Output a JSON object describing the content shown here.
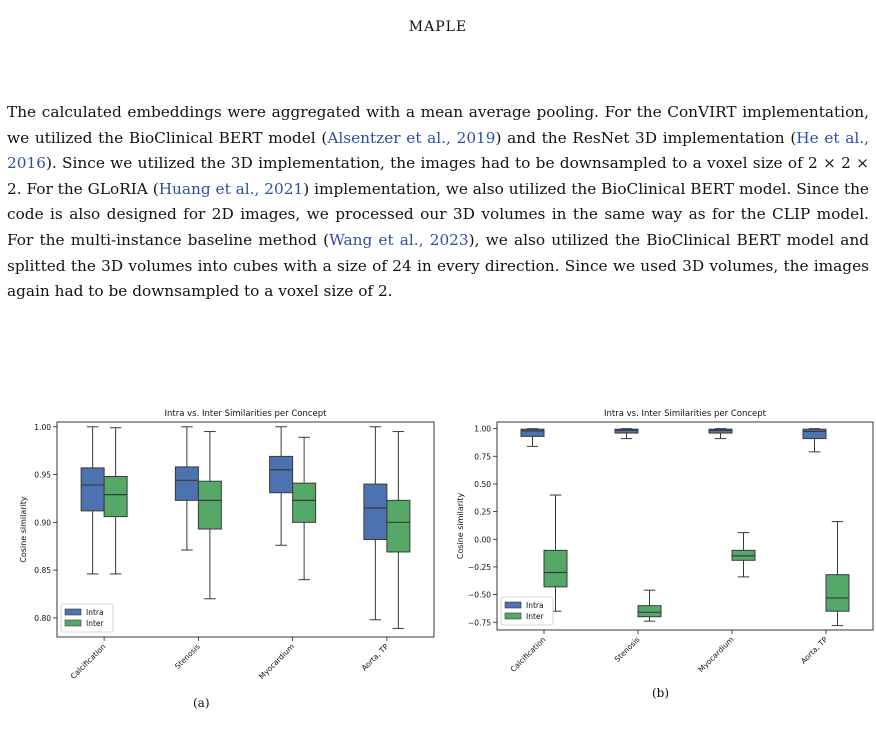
{
  "header": {
    "running_title": "MAPLE"
  },
  "paragraph": {
    "t1": "The calculated embeddings were aggregated with a mean average pooling. For the ConVIRT implementation, we utilized the BioClinical BERT model (",
    "c1": "Alsentzer et al., 2019",
    "t2": ") and the ResNet 3D implementation (",
    "c2": "He et al., 2016",
    "t3": "). Since we utilized the 3D implementation, the images had to be downsampled to a voxel size of 2 × 2 × 2. For the GLoRIA (",
    "c3": "Huang et al., 2021",
    "t4": ") implementation, we also utilized the BioClinical BERT model. Since the code is also designed for 2D images, we processed our 3D volumes in the same way as for the CLIP model. For the multi-instance baseline method (",
    "c4": "Wang et al., 2023",
    "t5": "), we also utilized the BioClinical BERT model and splitted the 3D volumes into cubes with a size of 24 in every direction. Since we used 3D volumes, the images again had to be downsampled to a voxel size of 2."
  },
  "colors": {
    "intra": "#4c72b0",
    "inter": "#55a868",
    "citation": "#2b4fa8"
  },
  "chart_data": [
    {
      "type": "boxplot",
      "title": "Intra vs. Inter Similarities per Concept",
      "ylabel": "Cosine similarity",
      "xlabel": "",
      "categories": [
        "Calcification",
        "Stenosis",
        "Myocardium",
        "Aorta, TP"
      ],
      "ylim": [
        0.78,
        1.005
      ],
      "yticks": [
        0.8,
        0.85,
        0.9,
        0.95,
        1.0
      ],
      "ytick_labels": [
        "0.80",
        "0.85",
        "0.90",
        "0.95",
        "1.00"
      ],
      "legend_position": "lower-left",
      "caption": "(a)",
      "series": [
        {
          "name": "Intra",
          "color": "#4c72b0",
          "boxes": [
            {
              "whislo": 0.846,
              "q1": 0.912,
              "med": 0.939,
              "q3": 0.957,
              "whishi": 1.0
            },
            {
              "whislo": 0.871,
              "q1": 0.923,
              "med": 0.944,
              "q3": 0.958,
              "whishi": 1.0
            },
            {
              "whislo": 0.876,
              "q1": 0.931,
              "med": 0.955,
              "q3": 0.969,
              "whishi": 1.0
            },
            {
              "whislo": 0.798,
              "q1": 0.882,
              "med": 0.915,
              "q3": 0.94,
              "whishi": 1.0
            }
          ]
        },
        {
          "name": "Inter",
          "color": "#55a868",
          "boxes": [
            {
              "whislo": 0.846,
              "q1": 0.906,
              "med": 0.929,
              "q3": 0.948,
              "whishi": 0.999
            },
            {
              "whislo": 0.82,
              "q1": 0.893,
              "med": 0.923,
              "q3": 0.943,
              "whishi": 0.995
            },
            {
              "whislo": 0.84,
              "q1": 0.9,
              "med": 0.923,
              "q3": 0.941,
              "whishi": 0.989
            },
            {
              "whislo": 0.789,
              "q1": 0.869,
              "med": 0.9,
              "q3": 0.923,
              "whishi": 0.995
            }
          ]
        }
      ]
    },
    {
      "type": "boxplot",
      "title": "Intra vs. Inter Similarities per Concept",
      "ylabel": "Cosine similarity",
      "xlabel": "",
      "categories": [
        "Calcification",
        "Stenosis",
        "Myocardium",
        "Aorta, TP"
      ],
      "ylim": [
        -0.82,
        1.06
      ],
      "yticks": [
        -0.75,
        -0.5,
        -0.25,
        0.0,
        0.25,
        0.5,
        0.75,
        1.0
      ],
      "ytick_labels": [
        "−0.75",
        "−0.50",
        "−0.25",
        "0.00",
        "0.25",
        "0.50",
        "0.75",
        "1.00"
      ],
      "legend_position": "lower-left",
      "caption": "(b)",
      "series": [
        {
          "name": "Intra",
          "color": "#4c72b0",
          "boxes": [
            {
              "whislo": 0.84,
              "q1": 0.93,
              "med": 0.98,
              "q3": 0.995,
              "whishi": 1.0
            },
            {
              "whislo": 0.91,
              "q1": 0.96,
              "med": 0.985,
              "q3": 0.995,
              "whishi": 1.0
            },
            {
              "whislo": 0.91,
              "q1": 0.96,
              "med": 0.985,
              "q3": 0.995,
              "whishi": 1.0
            },
            {
              "whislo": 0.79,
              "q1": 0.91,
              "med": 0.975,
              "q3": 0.995,
              "whishi": 1.0
            }
          ]
        },
        {
          "name": "Inter",
          "color": "#55a868",
          "boxes": [
            {
              "whislo": -0.65,
              "q1": -0.43,
              "med": -0.3,
              "q3": -0.1,
              "whishi": 0.4
            },
            {
              "whislo": -0.74,
              "q1": -0.7,
              "med": -0.66,
              "q3": -0.6,
              "whishi": -0.46
            },
            {
              "whislo": -0.34,
              "q1": -0.19,
              "med": -0.15,
              "q3": -0.1,
              "whishi": 0.06
            },
            {
              "whislo": -0.78,
              "q1": -0.65,
              "med": -0.53,
              "q3": -0.32,
              "whishi": 0.16
            }
          ]
        }
      ]
    }
  ]
}
